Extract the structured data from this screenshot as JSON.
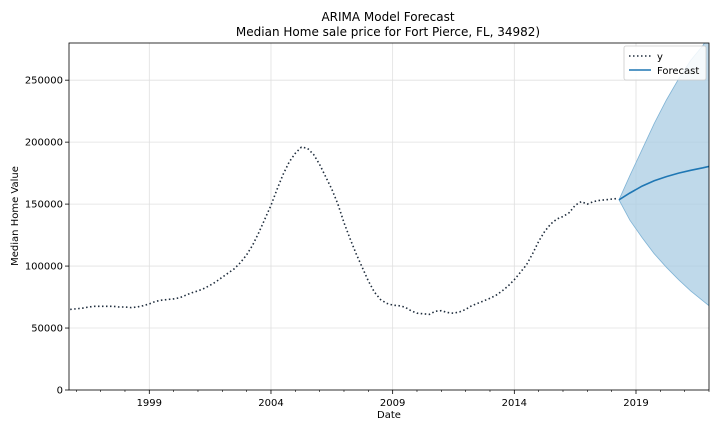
{
  "chart_data": {
    "type": "line",
    "title": "ARIMA Model Forecast",
    "subtitle": "Median Home sale price for Fort Pierce, FL, 34982)",
    "xlabel": "Date",
    "ylabel": "Median Home Value",
    "xlim": [
      1995.7,
      2022.0
    ],
    "ylim": [
      0,
      280000
    ],
    "xticks": [
      1999,
      2004,
      2009,
      2014,
      2019
    ],
    "yticks": [
      0,
      50000,
      100000,
      150000,
      200000,
      250000
    ],
    "grid": true,
    "legend_position": "top-right",
    "series": [
      {
        "name": "y",
        "style": "dotted",
        "color": "#1f2d3d",
        "x": [
          1995.75,
          1996.0,
          1996.25,
          1996.5,
          1996.75,
          1997.0,
          1997.25,
          1997.5,
          1997.75,
          1998.0,
          1998.25,
          1998.5,
          1998.75,
          1999.0,
          1999.25,
          1999.5,
          1999.75,
          2000.0,
          2000.25,
          2000.5,
          2000.75,
          2001.0,
          2001.25,
          2001.5,
          2001.75,
          2002.0,
          2002.25,
          2002.5,
          2002.75,
          2003.0,
          2003.25,
          2003.5,
          2003.75,
          2004.0,
          2004.25,
          2004.5,
          2004.75,
          2005.0,
          2005.25,
          2005.5,
          2005.75,
          2006.0,
          2006.25,
          2006.5,
          2006.75,
          2007.0,
          2007.25,
          2007.5,
          2007.75,
          2008.0,
          2008.25,
          2008.5,
          2008.75,
          2009.0,
          2009.25,
          2009.5,
          2009.75,
          2010.0,
          2010.25,
          2010.5,
          2010.75,
          2011.0,
          2011.25,
          2011.5,
          2011.75,
          2012.0,
          2012.25,
          2012.5,
          2012.75,
          2013.0,
          2013.25,
          2013.5,
          2013.75,
          2014.0,
          2014.25,
          2014.5,
          2014.75,
          2015.0,
          2015.25,
          2015.5,
          2015.75,
          2016.0,
          2016.25,
          2016.5,
          2016.75,
          2017.0,
          2017.25,
          2017.5,
          2017.75,
          2018.0,
          2018.25
        ],
        "values": [
          65000,
          65500,
          66000,
          67000,
          67500,
          67500,
          67500,
          67500,
          67000,
          67000,
          66500,
          67000,
          68000,
          69500,
          71500,
          72500,
          73000,
          73500,
          74500,
          76500,
          78500,
          80000,
          82000,
          84500,
          87500,
          91000,
          94500,
          98000,
          103000,
          109000,
          117000,
          127000,
          138000,
          149000,
          162000,
          174000,
          184000,
          191000,
          196000,
          195000,
          190000,
          182000,
          172000,
          162000,
          150000,
          135000,
          122000,
          110000,
          99000,
          88000,
          79000,
          73000,
          70000,
          68500,
          68000,
          67000,
          64000,
          62000,
          61500,
          61000,
          63500,
          64000,
          62500,
          62000,
          63000,
          65000,
          68000,
          70000,
          72000,
          74000,
          76500,
          80000,
          84000,
          89000,
          95000,
          101000,
          110000,
          120000,
          128000,
          134000,
          138000,
          140000,
          143000,
          149000,
          152000,
          150000,
          152000,
          153000,
          153500,
          154000,
          154500
        ],
        "x_trim": 2018.3
      },
      {
        "name": "Forecast",
        "style": "solid",
        "color": "#1f77b4",
        "x": [
          2018.3,
          2018.75,
          2019.25,
          2019.75,
          2020.25,
          2020.75,
          2021.25,
          2021.75,
          2022.0
        ],
        "values": [
          153500,
          159000,
          164500,
          168800,
          172200,
          175000,
          177300,
          179300,
          180400
        ],
        "ci_lower": [
          153500,
          137000,
          123000,
          110000,
          99000,
          89000,
          80000,
          72000,
          68000
        ],
        "ci_upper": [
          153500,
          173000,
          194000,
          215000,
          234000,
          251000,
          266000,
          278000,
          286000
        ],
        "ci_color": "#a9cce3"
      }
    ]
  }
}
